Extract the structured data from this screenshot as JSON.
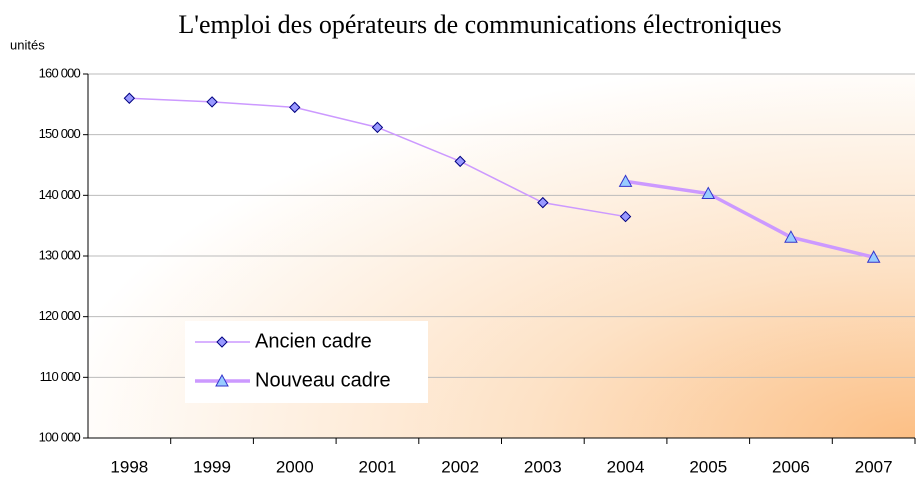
{
  "chart_data": {
    "type": "line",
    "title": "L'emploi des opérateurs de communications électroniques",
    "y_label": "unités",
    "categories": [
      "1998",
      "1999",
      "2000",
      "2001",
      "2002",
      "2003",
      "2004",
      "2005",
      "2006",
      "2007"
    ],
    "series": [
      {
        "name": "Ancien cadre",
        "color": "#cc99ff",
        "marker": "diamond",
        "marker_fill": "#9999ff",
        "marker_stroke": "#000080",
        "line_width": 1.5,
        "values": [
          156000,
          155400,
          154500,
          151200,
          145600,
          138800,
          136500,
          null,
          null,
          null
        ]
      },
      {
        "name": "Nouveau cadre",
        "color": "#cc99ff",
        "marker": "triangle",
        "marker_fill": "#99ccff",
        "marker_stroke": "#3333cc",
        "line_width": 3.5,
        "values": [
          null,
          null,
          null,
          null,
          null,
          null,
          142300,
          140300,
          133100,
          129800
        ]
      }
    ],
    "ylim": [
      100000,
      160000
    ],
    "yticks": [
      {
        "value": 100000,
        "label": "100 000"
      },
      {
        "value": 110000,
        "label": "110 000"
      },
      {
        "value": 120000,
        "label": "120 000"
      },
      {
        "value": 130000,
        "label": "130 000"
      },
      {
        "value": 140000,
        "label": "140 000"
      },
      {
        "value": 150000,
        "label": "150 000"
      },
      {
        "value": 160000,
        "label": "160 000"
      }
    ],
    "grid": true,
    "legend": "lower left"
  }
}
